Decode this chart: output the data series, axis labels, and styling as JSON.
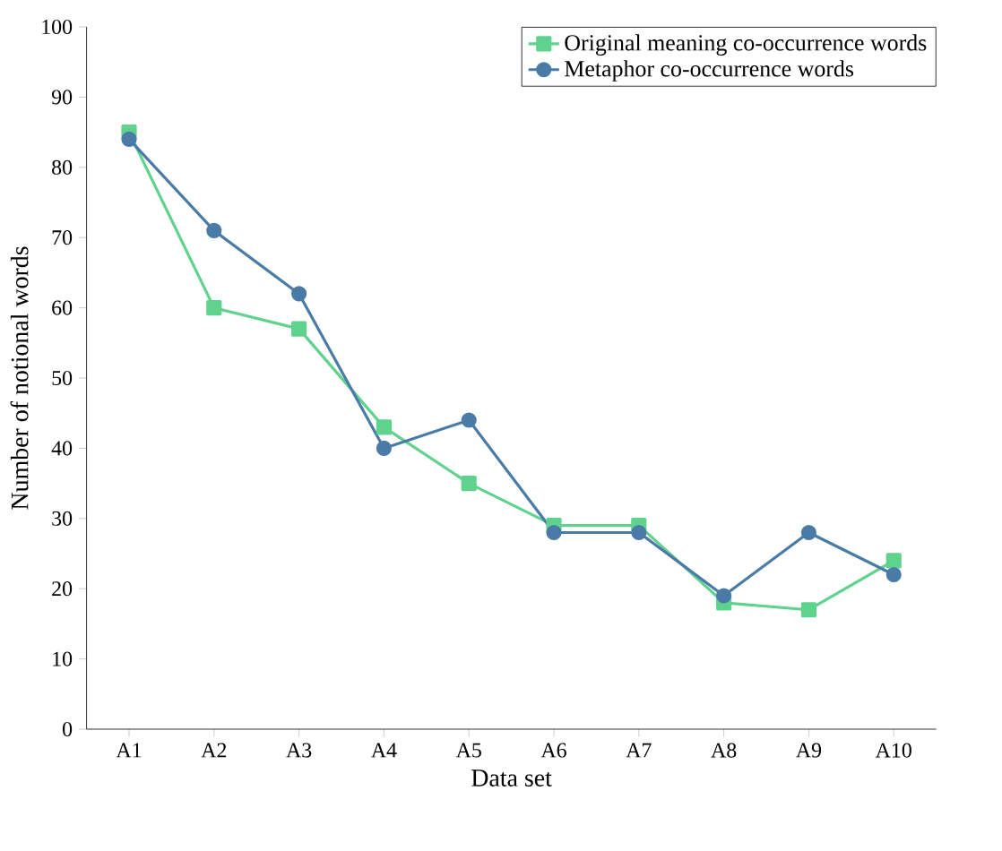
{
  "chart_data": {
    "type": "line",
    "xlabel": "Data set",
    "ylabel": "Number of notional words",
    "categories": [
      "A1",
      "A2",
      "A3",
      "A4",
      "A5",
      "A6",
      "A7",
      "A8",
      "A9",
      "A10"
    ],
    "series": [
      {
        "name": "Original meaning co-occurrence words",
        "color": "#5fd38d",
        "marker": "square",
        "values": [
          85,
          60,
          57,
          43,
          35,
          29,
          29,
          18,
          17,
          24
        ]
      },
      {
        "name": "Metaphor co-occurrence words",
        "color": "#4a7ba7",
        "marker": "circle",
        "values": [
          84,
          71,
          62,
          40,
          44,
          28,
          28,
          19,
          28,
          22
        ]
      }
    ],
    "ylim": [
      0,
      100
    ],
    "yticks": [
      0,
      10,
      20,
      30,
      40,
      50,
      60,
      70,
      80,
      90,
      100
    ],
    "legend": "top right",
    "grid": false,
    "line_style": "solid"
  }
}
